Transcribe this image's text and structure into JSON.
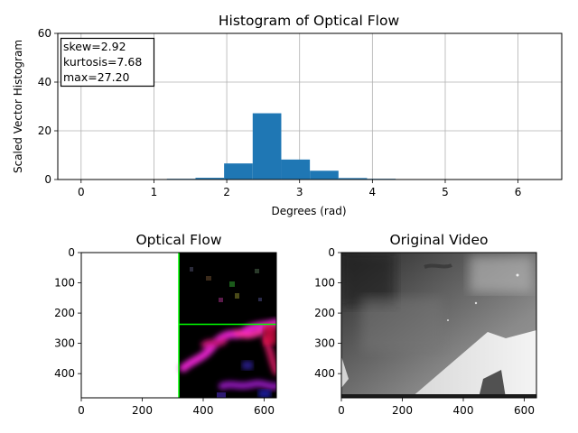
{
  "chart_data": [
    {
      "type": "bar",
      "title": "Histogram of Optical Flow",
      "xlabel": "Degrees (rad)",
      "ylabel": "Scaled Vector Histogram",
      "xlim": [
        -0.32,
        6.6
      ],
      "ylim": [
        0,
        60
      ],
      "xticks": [
        0,
        1,
        2,
        3,
        4,
        5,
        6
      ],
      "yticks": [
        0,
        20,
        40,
        60
      ],
      "grid": true,
      "color": "#1f77b4",
      "bin_width": 0.3927,
      "bin_starts": [
        0,
        0.3927,
        0.7854,
        1.1781,
        1.5708,
        1.9635,
        2.3562,
        2.7489,
        3.1416,
        3.5343,
        3.927,
        4.3197,
        4.7124,
        5.1051,
        5.4978,
        5.8905
      ],
      "values": [
        0,
        0,
        0,
        0.3,
        0.7,
        6.6,
        27.2,
        8.2,
        3.6,
        0.6,
        0.3,
        0,
        0,
        0,
        0,
        0
      ],
      "stats": {
        "skew": "skew=2.92",
        "kurtosis": "kurtosis=7.68",
        "max": "max=27.20"
      },
      "legend_placement": "top-left"
    },
    {
      "type": "image",
      "title": "Optical Flow",
      "xlim": [
        0,
        640
      ],
      "ylim": [
        480,
        0
      ],
      "xticks": [
        0,
        200,
        400,
        600
      ],
      "yticks": [
        0,
        100,
        200,
        300,
        400
      ],
      "divider_color": "#00ff00",
      "divider_x": 320,
      "divider_y": 237
    },
    {
      "type": "image",
      "title": "Original Video",
      "xlim": [
        0,
        640
      ],
      "ylim": [
        480,
        0
      ],
      "xticks": [
        0,
        200,
        400,
        600
      ],
      "yticks": [
        0,
        100,
        200,
        300,
        400
      ]
    }
  ]
}
